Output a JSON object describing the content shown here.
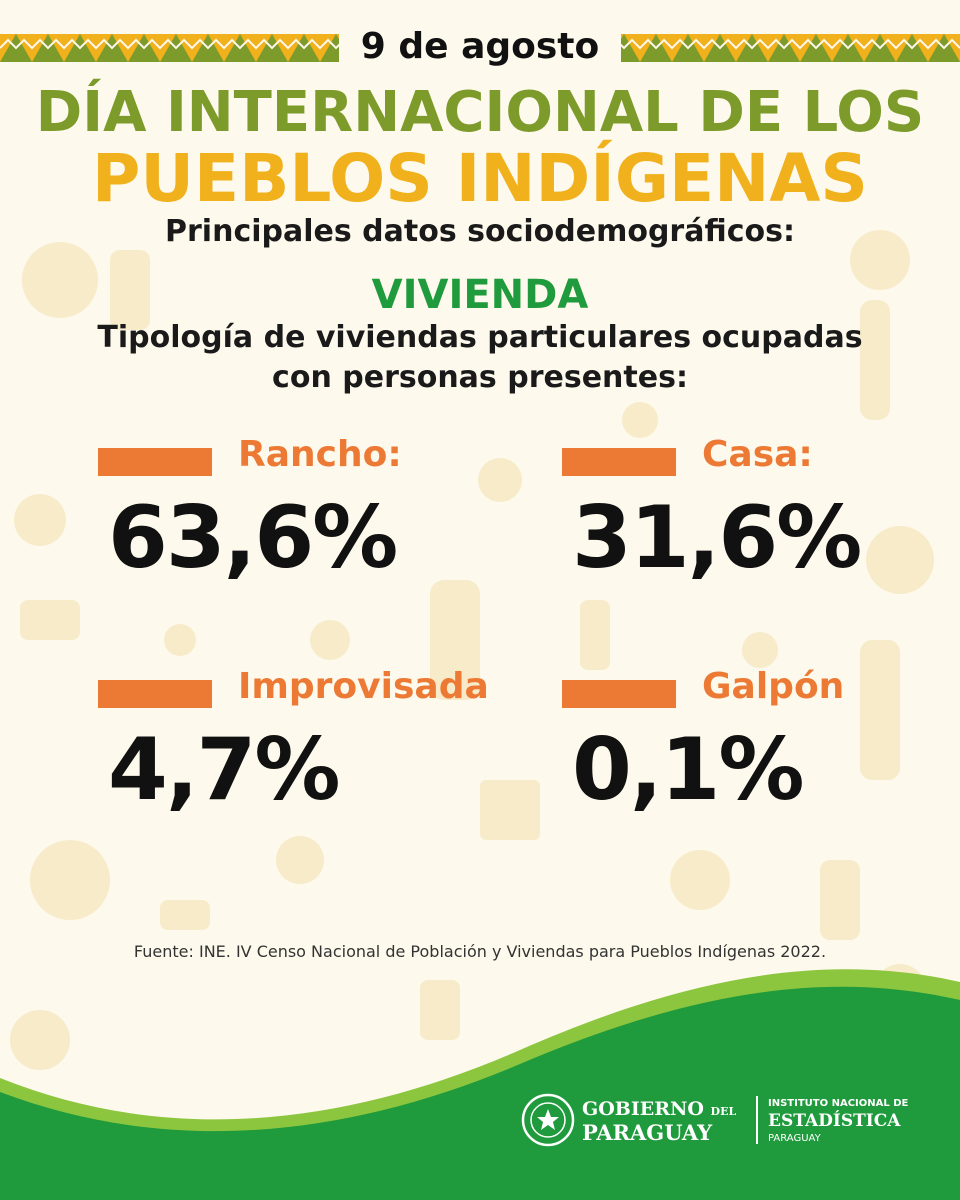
{
  "header": {
    "date": "9 de agosto",
    "title_line1": "DÍA INTERNACIONAL DE LOS",
    "title_line2": "PUEBLOS INDÍGENAS",
    "subtitle": "Principales datos sociodemográficos:"
  },
  "section": {
    "title": "VIVIENDA",
    "description_line1": "Tipología de viviendas particulares ocupadas",
    "description_line2": "con personas presentes:"
  },
  "stats": [
    {
      "label": "Rancho:",
      "value": "63,6%"
    },
    {
      "label": "Casa:",
      "value": "31,6%"
    },
    {
      "label": "Improvisada",
      "value": "4,7%"
    },
    {
      "label": "Galpón",
      "value": "0,1%"
    }
  ],
  "source": "Fuente: INE. IV Censo Nacional de Población y Viviendas para Pueblos Indígenas 2022.",
  "footer": {
    "gov_line1": "GOBIERNO",
    "gov_line1_small": "DEL",
    "gov_line2": "PARAGUAY",
    "ine_line1": "INSTITUTO NACIONAL DE",
    "ine_line2": "ESTADÍSTICA",
    "ine_line3": "PARAGUAY"
  },
  "colors": {
    "background": "#fdf9ec",
    "olive": "#7d9b2a",
    "gold": "#f0b11c",
    "green": "#1f9a3c",
    "orange": "#ec7a34"
  }
}
